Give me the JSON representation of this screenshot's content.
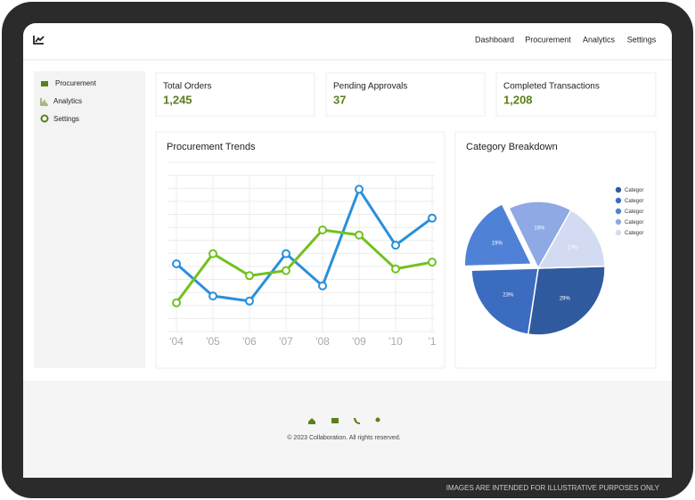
{
  "header": {
    "nav": [
      "Dashboard",
      "Procurement",
      "Analytics",
      "Settings"
    ]
  },
  "sidebar": {
    "items": [
      "Procurement",
      "Analytics",
      "Settings"
    ]
  },
  "stats": [
    {
      "label": "Total Orders",
      "value": "1,245"
    },
    {
      "label": "Pending Approvals",
      "value": "37"
    },
    {
      "label": "Completed Transactions",
      "value": "1,208"
    }
  ],
  "chart_data": [
    {
      "type": "line",
      "title": "Procurement Trends",
      "categories": [
        "'04",
        "'05",
        "'06",
        "'07",
        "'08",
        "'09",
        "'10",
        "'1"
      ],
      "series": [
        {
          "color": "#2a8fdb",
          "values": [
            40,
            21,
            18,
            46,
            27,
            84,
            51,
            67
          ]
        },
        {
          "color": "#72c11f",
          "values": [
            17,
            46,
            33,
            36,
            60,
            57,
            37,
            41
          ]
        }
      ],
      "ylim": [
        0,
        100
      ],
      "grid": true
    },
    {
      "type": "pie",
      "title": "Category Breakdown",
      "categories": [
        "Categor",
        "Categor",
        "Categor",
        "Categor",
        "Categor"
      ],
      "values": [
        29,
        23,
        19,
        16,
        17
      ],
      "value_labels": [
        "29%",
        "23%",
        "19%",
        "16%",
        "17%"
      ],
      "colors": [
        "#2f5b9e",
        "#3c6cbf",
        "#4f82d6",
        "#8ea9e3",
        "#d3dbf2"
      ],
      "exploded": 2,
      "legend": "right"
    }
  ],
  "footer": {
    "copyright": "© 2023 Collaboration. All rights reserved."
  },
  "disclaimer": "IMAGES ARE INTENDED FOR ILLUSTRATIVE PURPOSES ONLY"
}
